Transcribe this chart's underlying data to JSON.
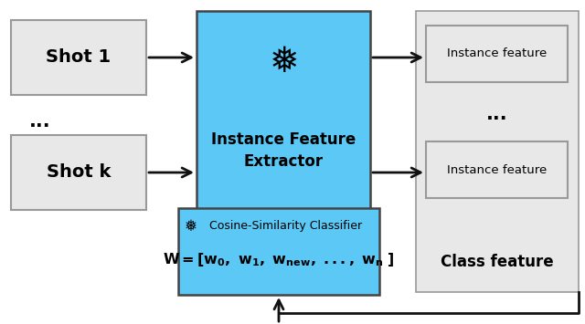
{
  "bg_color": "#ffffff",
  "light_blue": "#5BC8F5",
  "light_gray": "#E8E8E8",
  "edge_gray": "#999999",
  "edge_dark": "#444444",
  "arrow_color": "#111111",
  "shot1_label": "Shot 1",
  "shotk_label": "Shot k",
  "dots_left": "...",
  "dots_right": "...",
  "ife_label": "Instance Feature\nExtractor",
  "inst1_label": "Instance feature",
  "instk_label": "Instance feature",
  "class_label": "Class feature",
  "classifier_title": "Cosine-Similarity Classifier",
  "snowflake": "❅",
  "figsize": [
    6.4,
    3.55
  ],
  "dpi": 100
}
